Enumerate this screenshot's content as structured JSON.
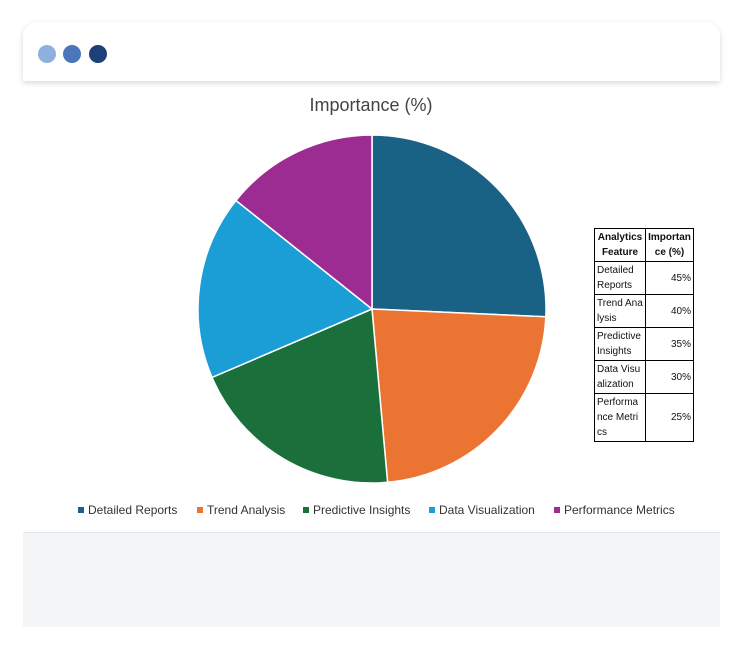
{
  "window": {
    "dots": [
      {
        "name": "dot-1",
        "color": "#8fb0dc"
      },
      {
        "name": "dot-2",
        "color": "#4a76bc"
      },
      {
        "name": "dot-3",
        "color": "#1d3f7a"
      }
    ]
  },
  "chart_data": {
    "type": "pie",
    "title": "Importance (%)",
    "categories": [
      "Detailed Reports",
      "Trend Analysis",
      "Predictive Insights",
      "Data Visualization",
      "Performance Metrics"
    ],
    "values": [
      45,
      40,
      35,
      30,
      25
    ],
    "colors": [
      "#1a6285",
      "#ec7433",
      "#1a6f3a",
      "#1b9ed6",
      "#9c2c92"
    ],
    "legend_position": "bottom"
  },
  "table": {
    "headers": [
      "Analytics Feature",
      "Importance (%)"
    ],
    "rows": [
      {
        "feature": "Detailed Reports",
        "value": "45%"
      },
      {
        "feature": "Trend Analysis",
        "value": "40%"
      },
      {
        "feature": "Predictive Insights",
        "value": "35%"
      },
      {
        "feature": "Data Visualization",
        "value": "30%"
      },
      {
        "feature": "Performance Metrics",
        "value": "25%"
      }
    ]
  }
}
